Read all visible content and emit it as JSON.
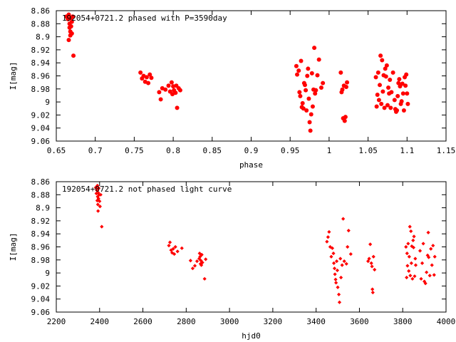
{
  "chart_data": [
    {
      "type": "scatter",
      "title": "192054+0721.2 phased with P=3590day",
      "xlabel": "phase",
      "ylabel": "I[mag]",
      "xlim": [
        0.65,
        1.15
      ],
      "ylim": [
        9.06,
        8.86
      ],
      "y_inverted": true,
      "x_ticks": [
        0.65,
        0.7,
        0.75,
        0.8,
        0.85,
        0.9,
        0.95,
        1,
        1.05,
        1.1,
        1.15
      ],
      "x_tick_labels": [
        "0.65",
        "0.7",
        "0.75",
        "0.8",
        "0.85",
        "0.9",
        "0.95",
        "1",
        "1.05",
        "1.1",
        "1.15"
      ],
      "y_ticks": [
        8.86,
        8.88,
        8.9,
        8.92,
        8.94,
        8.96,
        8.98,
        9,
        9.02,
        9.04,
        9.06
      ],
      "y_tick_labels": [
        "8.86",
        "8.88",
        "8.9",
        "8.92",
        "8.94",
        "8.96",
        "8.98",
        "9",
        "9.02",
        "9.04",
        "9.06"
      ],
      "grid": false,
      "legend": "none",
      "marker": "filled-circle",
      "color": "#ff0000",
      "points": [
        [
          0.663,
          8.869
        ],
        [
          0.665,
          8.873
        ],
        [
          0.666,
          8.866
        ],
        [
          0.667,
          8.88
        ],
        [
          0.667,
          8.886
        ],
        [
          0.668,
          8.892
        ],
        [
          0.668,
          8.898
        ],
        [
          0.669,
          8.871
        ],
        [
          0.669,
          8.884
        ],
        [
          0.666,
          8.905
        ],
        [
          0.67,
          8.877
        ],
        [
          0.671,
          8.869
        ],
        [
          0.67,
          8.895
        ],
        [
          0.672,
          8.929
        ],
        [
          0.758,
          8.955
        ],
        [
          0.76,
          8.964
        ],
        [
          0.762,
          8.96
        ],
        [
          0.764,
          8.969
        ],
        [
          0.766,
          8.962
        ],
        [
          0.768,
          8.971
        ],
        [
          0.77,
          8.958
        ],
        [
          0.772,
          8.963
        ],
        [
          0.782,
          8.985
        ],
        [
          0.786,
          8.979
        ],
        [
          0.79,
          8.981
        ],
        [
          0.794,
          8.975
        ],
        [
          0.796,
          8.984
        ],
        [
          0.798,
          8.97
        ],
        [
          0.799,
          8.988
        ],
        [
          0.8,
          8.976
        ],
        [
          0.801,
          8.982
        ],
        [
          0.803,
          8.986
        ],
        [
          0.804,
          8.975
        ],
        [
          0.805,
          9.009
        ],
        [
          0.807,
          8.979
        ],
        [
          0.809,
          8.982
        ],
        [
          0.784,
          8.996
        ],
        [
          0.958,
          8.945
        ],
        [
          0.959,
          8.958
        ],
        [
          0.961,
          8.952
        ],
        [
          0.962,
          8.985
        ],
        [
          0.963,
          8.991
        ],
        [
          0.964,
          8.937
        ],
        [
          0.965,
          9.008
        ],
        [
          0.966,
          9.002
        ],
        [
          0.967,
          9.01
        ],
        [
          0.968,
          8.971
        ],
        [
          0.969,
          8.974
        ],
        [
          0.97,
          8.982
        ],
        [
          0.971,
          9.013
        ],
        [
          0.972,
          8.96
        ],
        [
          0.973,
          8.949
        ],
        [
          0.974,
          8.995
        ],
        [
          0.975,
          9.031
        ],
        [
          0.976,
          9.044
        ],
        [
          0.977,
          9.019
        ],
        [
          0.978,
          8.956
        ],
        [
          0.979,
          9.007
        ],
        [
          0.98,
          8.981
        ],
        [
          0.981,
          8.917
        ],
        [
          0.982,
          8.987
        ],
        [
          0.983,
          8.982
        ],
        [
          0.985,
          8.959
        ],
        [
          0.987,
          8.935
        ],
        [
          0.99,
          8.978
        ],
        [
          0.992,
          8.971
        ],
        [
          1.015,
          8.955
        ],
        [
          1.016,
          8.985
        ],
        [
          1.017,
          8.981
        ],
        [
          1.018,
          9.025
        ],
        [
          1.019,
          8.975
        ],
        [
          1.02,
          9.029
        ],
        [
          1.021,
          9.023
        ],
        [
          1.022,
          8.977
        ],
        [
          1.023,
          8.97
        ],
        [
          1.06,
          8.962
        ],
        [
          1.061,
          9.007
        ],
        [
          1.062,
          8.989
        ],
        [
          1.063,
          8.955
        ],
        [
          1.064,
          8.997
        ],
        [
          1.065,
          8.974
        ],
        [
          1.066,
          8.929
        ],
        [
          1.067,
          9.003
        ],
        [
          1.068,
          8.936
        ],
        [
          1.069,
          8.984
        ],
        [
          1.07,
          8.959
        ],
        [
          1.071,
          9.009
        ],
        [
          1.072,
          8.949
        ],
        [
          1.073,
          8.961
        ],
        [
          1.074,
          8.944
        ],
        [
          1.075,
          9.005
        ],
        [
          1.076,
          8.978
        ],
        [
          1.077,
          8.987
        ],
        [
          1.078,
          8.966
        ],
        [
          1.079,
          9.009
        ],
        [
          1.08,
          8.985
        ],
        [
          1.082,
          8.955
        ],
        [
          1.084,
          8.997
        ],
        [
          1.085,
          9.011
        ],
        [
          1.086,
          9.015
        ],
        [
          1.087,
          9.013
        ],
        [
          1.088,
          8.991
        ],
        [
          1.089,
          8.971
        ],
        [
          1.09,
          8.965
        ],
        [
          1.091,
          8.976
        ],
        [
          1.092,
          9.003
        ],
        [
          1.093,
          8.999
        ],
        [
          1.094,
          8.972
        ],
        [
          1.095,
          8.987
        ],
        [
          1.096,
          9.013
        ],
        [
          1.097,
          8.962
        ],
        [
          1.098,
          8.975
        ],
        [
          1.099,
          8.958
        ],
        [
          1.1,
          8.987
        ],
        [
          1.101,
          9.003
        ]
      ]
    },
    {
      "type": "scatter",
      "title": "192054+0721.2 not phased light curve",
      "xlabel": "hjd0",
      "ylabel": "I[mag]",
      "xlim": [
        2200,
        4000
      ],
      "ylim": [
        9.06,
        8.86
      ],
      "y_inverted": true,
      "x_ticks": [
        2200,
        2400,
        2600,
        2800,
        3000,
        3200,
        3400,
        3600,
        3800,
        4000
      ],
      "x_tick_labels": [
        "2200",
        "2400",
        "2600",
        "2800",
        "3000",
        "3200",
        "3400",
        "3600",
        "3800",
        "4000"
      ],
      "y_ticks": [
        8.86,
        8.88,
        8.9,
        8.92,
        8.94,
        8.96,
        8.98,
        9,
        9.02,
        9.04,
        9.06
      ],
      "y_tick_labels": [
        "8.86",
        "8.88",
        "8.9",
        "8.92",
        "8.94",
        "8.96",
        "8.98",
        "9",
        "9.02",
        "9.04",
        "9.06"
      ],
      "grid": false,
      "legend": "none",
      "marker": "small-diamond",
      "color": "#ff0000",
      "points": [
        [
          2382,
          8.869
        ],
        [
          2385,
          8.878
        ],
        [
          2387,
          8.873
        ],
        [
          2389,
          8.889
        ],
        [
          2390,
          8.866
        ],
        [
          2391,
          8.883
        ],
        [
          2392,
          8.895
        ],
        [
          2393,
          8.905
        ],
        [
          2394,
          8.877
        ],
        [
          2395,
          8.886
        ],
        [
          2396,
          8.87
        ],
        [
          2398,
          8.88
        ],
        [
          2400,
          8.89
        ],
        [
          2402,
          8.898
        ],
        [
          2405,
          8.88
        ],
        [
          2410,
          8.929
        ],
        [
          2720,
          8.958
        ],
        [
          2725,
          8.953
        ],
        [
          2730,
          8.965
        ],
        [
          2735,
          8.969
        ],
        [
          2740,
          8.963
        ],
        [
          2745,
          8.971
        ],
        [
          2750,
          8.96
        ],
        [
          2760,
          8.967
        ],
        [
          2780,
          8.962
        ],
        [
          2820,
          8.981
        ],
        [
          2830,
          8.993
        ],
        [
          2840,
          8.989
        ],
        [
          2850,
          8.982
        ],
        [
          2860,
          8.978
        ],
        [
          2862,
          8.97
        ],
        [
          2864,
          8.975
        ],
        [
          2866,
          8.986
        ],
        [
          2868,
          8.981
        ],
        [
          2870,
          8.988
        ],
        [
          2872,
          8.972
        ],
        [
          2875,
          8.984
        ],
        [
          2885,
          9.009
        ],
        [
          2890,
          8.979
        ],
        [
          3450,
          8.952
        ],
        [
          3455,
          8.945
        ],
        [
          3460,
          8.937
        ],
        [
          3465,
          8.96
        ],
        [
          3470,
          8.975
        ],
        [
          3475,
          8.962
        ],
        [
          3480,
          8.97
        ],
        [
          3482,
          8.985
        ],
        [
          3485,
          8.993
        ],
        [
          3487,
          9.002
        ],
        [
          3490,
          9.01
        ],
        [
          3492,
          9.015
        ],
        [
          3495,
          8.982
        ],
        [
          3498,
          8.996
        ],
        [
          3500,
          9.022
        ],
        [
          3505,
          9.033
        ],
        [
          3508,
          9.045
        ],
        [
          3512,
          8.978
        ],
        [
          3515,
          9.007
        ],
        [
          3520,
          8.988
        ],
        [
          3525,
          8.917
        ],
        [
          3530,
          8.982
        ],
        [
          3540,
          8.986
        ],
        [
          3545,
          8.96
        ],
        [
          3550,
          8.935
        ],
        [
          3560,
          8.971
        ],
        [
          3640,
          8.982
        ],
        [
          3645,
          8.978
        ],
        [
          3650,
          8.956
        ],
        [
          3655,
          8.985
        ],
        [
          3658,
          8.99
        ],
        [
          3660,
          9.025
        ],
        [
          3662,
          9.03
        ],
        [
          3665,
          8.975
        ],
        [
          3670,
          8.995
        ],
        [
          3815,
          8.96
        ],
        [
          3818,
          9.007
        ],
        [
          3820,
          8.97
        ],
        [
          3822,
          8.989
        ],
        [
          3825,
          8.955
        ],
        [
          3828,
          8.997
        ],
        [
          3830,
          8.975
        ],
        [
          3833,
          8.929
        ],
        [
          3835,
          9.004
        ],
        [
          3838,
          8.936
        ],
        [
          3840,
          8.985
        ],
        [
          3842,
          8.959
        ],
        [
          3845,
          9.009
        ],
        [
          3848,
          8.95
        ],
        [
          3850,
          8.961
        ],
        [
          3852,
          8.944
        ],
        [
          3855,
          9.005
        ],
        [
          3858,
          8.978
        ],
        [
          3860,
          8.988
        ],
        [
          3880,
          8.966
        ],
        [
          3885,
          9.009
        ],
        [
          3890,
          8.985
        ],
        [
          3895,
          8.955
        ],
        [
          3900,
          9.013
        ],
        [
          3905,
          9.016
        ],
        [
          3910,
          8.999
        ],
        [
          3915,
          8.973
        ],
        [
          3918,
          8.938
        ],
        [
          3920,
          8.976
        ],
        [
          3925,
          9.004
        ],
        [
          3930,
          8.963
        ],
        [
          3935,
          8.988
        ],
        [
          3940,
          8.958
        ],
        [
          3945,
          9.003
        ],
        [
          3948,
          8.975
        ]
      ]
    }
  ]
}
